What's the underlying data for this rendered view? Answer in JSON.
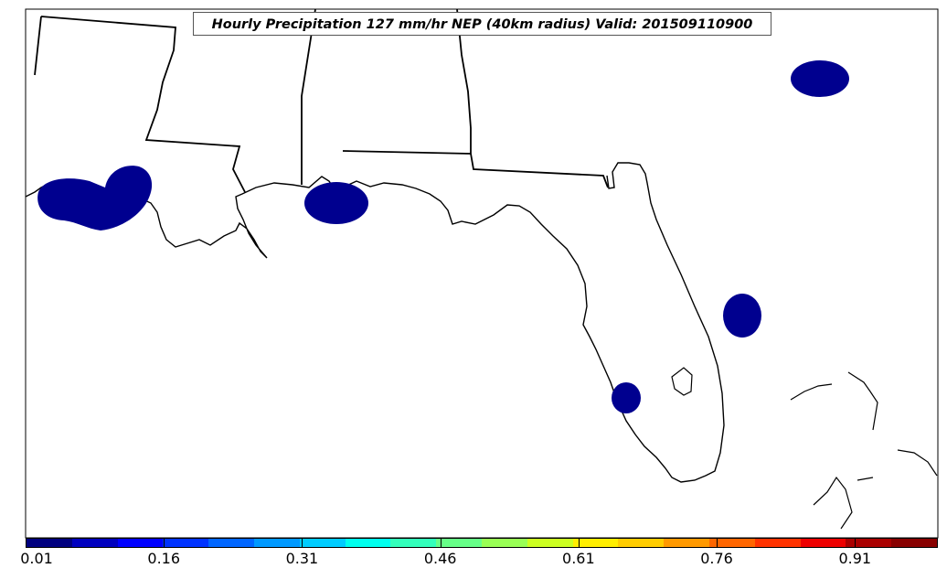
{
  "map": {
    "title": "Hourly Precipitation 127 mm/hr NEP (40km radius) Valid: 201509110900",
    "region": "Gulf Coast and Florida, southeastern United States",
    "land_color": "#ffffff",
    "boundary_color": "#000000",
    "precip_fill_color": "#00008f"
  },
  "colorbar": {
    "colors": [
      "#00007f",
      "#0000bf",
      "#0000ff",
      "#0033ff",
      "#0066ff",
      "#0099ff",
      "#00ccff",
      "#00ffee",
      "#33ffbb",
      "#66ff88",
      "#99ff55",
      "#ccff22",
      "#ffee00",
      "#ffcc00",
      "#ff9900",
      "#ff6600",
      "#ff3300",
      "#ee0000",
      "#aa0000",
      "#880000"
    ],
    "ticks": [
      "0.01",
      "0.16",
      "0.31",
      "0.46",
      "0.61",
      "0.76",
      "0.91"
    ],
    "tick_values": [
      0.01,
      0.16,
      0.31,
      0.46,
      0.61,
      0.76,
      0.91
    ],
    "min": 0.01,
    "max": 1.0
  }
}
